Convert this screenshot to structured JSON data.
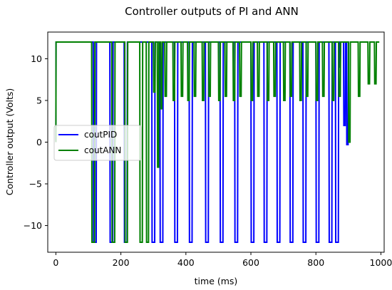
{
  "chart_data": {
    "type": "line",
    "title": "Controller outputs of PI and ANN",
    "xlabel": "time (ms)",
    "ylabel": "Controller output (Volts)",
    "xlim": [
      -25,
      1010
    ],
    "ylim": [
      -13.2,
      13.2
    ],
    "xticks": [
      0,
      200,
      400,
      600,
      800,
      1000
    ],
    "yticks": [
      -10,
      -5,
      0,
      5,
      10
    ],
    "grid": false,
    "legend_position": "center-left",
    "series": [
      {
        "name": "coutPID",
        "color": "#0000ff",
        "x": [
          0,
          0.5,
          115,
          116,
          124,
          125,
          166,
          167,
          175,
          176,
          210,
          211,
          219,
          220,
          295,
          296,
          304,
          305,
          320,
          321,
          329,
          330,
          365,
          366,
          374,
          375,
          410,
          411,
          419,
          420,
          460,
          461,
          469,
          470,
          505,
          506,
          514,
          515,
          550,
          551,
          559,
          560,
          600,
          601,
          609,
          610,
          640,
          641,
          649,
          650,
          680,
          681,
          689,
          690,
          720,
          721,
          729,
          730,
          760,
          761,
          769,
          770,
          800,
          801,
          809,
          810,
          840,
          841,
          849,
          850,
          860,
          861,
          869,
          870,
          872,
          873,
          875,
          876,
          885,
          886,
          890,
          891,
          894,
          895,
          899,
          900,
          902
        ],
        "y": [
          0,
          12,
          12,
          -12,
          -12,
          12,
          12,
          -12,
          -12,
          12,
          12,
          -12,
          -12,
          12,
          12,
          -12,
          -12,
          12,
          12,
          -12,
          -12,
          12,
          12,
          -12,
          -12,
          12,
          12,
          -12,
          -12,
          12,
          12,
          -12,
          -12,
          12,
          12,
          -12,
          -12,
          12,
          12,
          -12,
          -12,
          12,
          12,
          -12,
          -12,
          12,
          12,
          -12,
          -12,
          12,
          12,
          -12,
          -12,
          12,
          12,
          -12,
          -12,
          12,
          12,
          -12,
          -12,
          12,
          12,
          -12,
          -12,
          12,
          12,
          -12,
          -12,
          12,
          12,
          -12,
          -12,
          12,
          12,
          9,
          9,
          12,
          12,
          2,
          2,
          12,
          12,
          -0.3,
          -0.3,
          12,
          12
        ]
      },
      {
        "name": "coutANN",
        "color": "#008000",
        "x": [
          0,
          0.5,
          110,
          111,
          119,
          120,
          172,
          173,
          181,
          182,
          212,
          213,
          220,
          221,
          258,
          259,
          266,
          267,
          278,
          279,
          285,
          286,
          300,
          301,
          305,
          306,
          312,
          313,
          316,
          317,
          322,
          323,
          326,
          327,
          335,
          336,
          340,
          341,
          360,
          361,
          365,
          366,
          385,
          386,
          390,
          391,
          405,
          406,
          410,
          411,
          425,
          426,
          430,
          431,
          450,
          451,
          455,
          456,
          470,
          471,
          475,
          476,
          500,
          501,
          505,
          506,
          520,
          521,
          525,
          526,
          545,
          546,
          550,
          551,
          565,
          566,
          570,
          571,
          600,
          601,
          605,
          606,
          620,
          621,
          625,
          626,
          650,
          651,
          655,
          656,
          670,
          671,
          675,
          676,
          700,
          701,
          705,
          706,
          720,
          721,
          725,
          726,
          750,
          751,
          755,
          756,
          770,
          771,
          775,
          776,
          800,
          801,
          805,
          806,
          820,
          821,
          825,
          826,
          850,
          851,
          855,
          856,
          870,
          871,
          875,
          876,
          900,
          901,
          905,
          906,
          930,
          931,
          935,
          936,
          960,
          961,
          965,
          966,
          980,
          981,
          985,
          986,
          995
        ],
        "y": [
          0,
          12,
          12,
          -12,
          -12,
          12,
          12,
          -12,
          -12,
          12,
          12,
          -12,
          -12,
          12,
          12,
          -12,
          -12,
          12,
          12,
          -12,
          -12,
          12,
          12,
          6,
          6,
          12,
          12,
          -3,
          -3,
          12,
          12,
          4,
          4,
          12,
          12,
          5.5,
          5.5,
          12,
          12,
          5,
          5,
          12,
          12,
          5.5,
          5.5,
          12,
          12,
          5,
          5,
          12,
          12,
          5.5,
          5.5,
          12,
          12,
          5,
          5,
          12,
          12,
          5.5,
          5.5,
          12,
          12,
          5,
          5,
          12,
          12,
          5.5,
          5.5,
          12,
          12,
          5,
          5,
          12,
          12,
          5.5,
          5.5,
          12,
          12,
          5,
          5,
          12,
          12,
          5.5,
          5.5,
          12,
          12,
          5,
          5,
          12,
          12,
          5.5,
          5.5,
          12,
          12,
          5,
          5,
          12,
          12,
          5.5,
          5.5,
          12,
          12,
          5,
          5,
          12,
          12,
          5.5,
          5.5,
          12,
          12,
          5,
          5,
          12,
          12,
          5.5,
          5.5,
          12,
          12,
          5,
          5,
          12,
          12,
          5.5,
          5.5,
          12,
          12,
          0,
          0,
          12,
          12,
          5.5,
          5.5,
          12,
          12,
          7,
          7,
          12,
          12,
          7,
          7,
          12,
          12
        ]
      }
    ]
  }
}
